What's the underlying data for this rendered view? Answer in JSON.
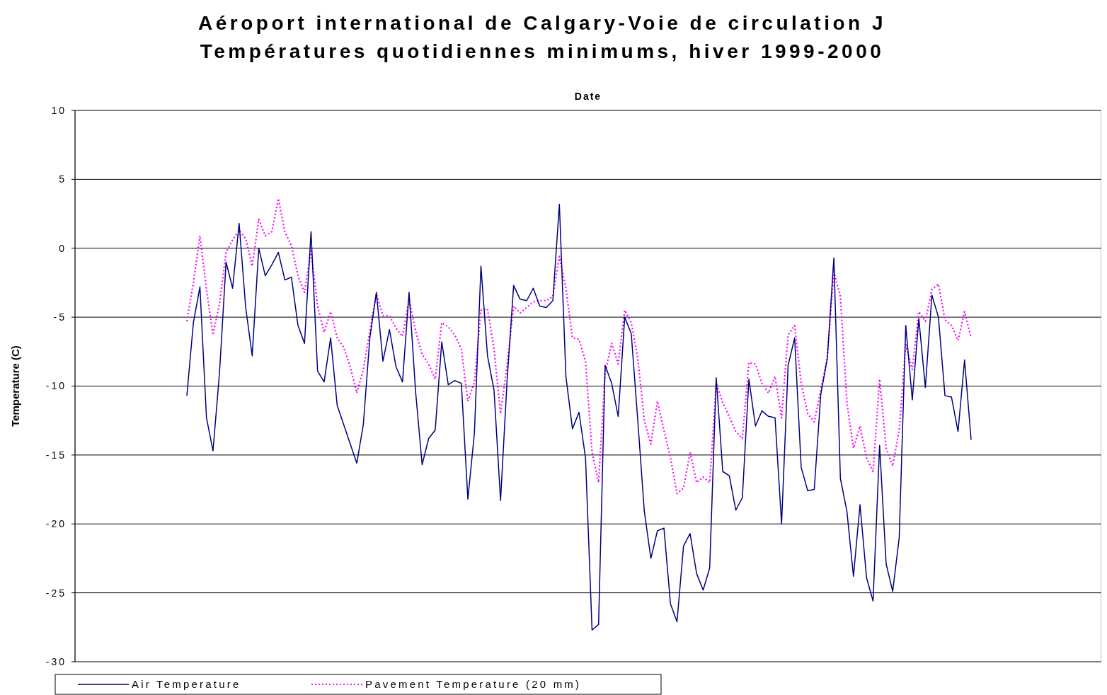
{
  "chart_data": {
    "type": "line",
    "title": "Aéroport international de Calgary-Voie de circulation J",
    "subtitle": "Températures quotidiennes minimums, hiver 1999-2000",
    "xlabel": "Date",
    "ylabel": "Temperature (C)",
    "categories": [
      null,
      null,
      null,
      null,
      null,
      null,
      null,
      null,
      null,
      null,
      null,
      null,
      null,
      null,
      null,
      null,
      null,
      null,
      null,
      null,
      null,
      null,
      null,
      null,
      null,
      null,
      null,
      null,
      null,
      null,
      null,
      null,
      null,
      null,
      null,
      null,
      null,
      null,
      null,
      null,
      null,
      null,
      null,
      null,
      null,
      null,
      null,
      null,
      null,
      null,
      null,
      null,
      null,
      null,
      null,
      null,
      null,
      null,
      null,
      null,
      null,
      null,
      null,
      null,
      null,
      null,
      null,
      null,
      null,
      null,
      null,
      null,
      null,
      null,
      null,
      null,
      null,
      null,
      null,
      null,
      null,
      null,
      null,
      null,
      null,
      null,
      null,
      null,
      null,
      null,
      null,
      null,
      null,
      null,
      null,
      null,
      null,
      null,
      null,
      null,
      null,
      null,
      null,
      null,
      null,
      null,
      null,
      null,
      null,
      null,
      null,
      null,
      null,
      null,
      null,
      null,
      null,
      null,
      null,
      null,
      null
    ],
    "series": [
      {
        "name": "Air Temperature",
        "color": "#000080",
        "line_style": "solid",
        "values": [
          -10.7,
          -5.4,
          -2.8,
          -12.3,
          -14.7,
          -9,
          -1,
          -2.9,
          1.8,
          -4.3,
          -7.8,
          0,
          -2,
          -1.2,
          -0.3,
          -2.3,
          -2.1,
          -5.6,
          -6.9,
          1.2,
          -8.9,
          -9.7,
          -6.5,
          -11.4,
          -12.8,
          -14.2,
          -15.6,
          -12.8,
          -6.5,
          -3.2,
          -8.2,
          -5.9,
          -8.6,
          -9.7,
          -3.2,
          -10.4,
          -15.7,
          -13.8,
          -13.2,
          -6.8,
          -9.9,
          -9.6,
          -9.8,
          -18.2,
          -13.4,
          -1.3,
          -7.8,
          -10.3,
          -18.3,
          -9.6,
          -2.7,
          -3.7,
          -3.8,
          -2.9,
          -4.2,
          -4.3,
          -3.8,
          3.2,
          -9.3,
          -13.1,
          -11.9,
          -15.2,
          -27.7,
          -27.3,
          -8.5,
          -9.8,
          -12.2,
          -5,
          -6.2,
          -12.5,
          -19.1,
          -22.5,
          -20.5,
          -20.3,
          -25.8,
          -27.1,
          -21.6,
          -20.7,
          -23.6,
          -24.8,
          -23.2,
          -9.4,
          -16.2,
          -16.5,
          -19,
          -18.1,
          -9.5,
          -12.9,
          -11.8,
          -12.2,
          -12.3,
          -20,
          -8.5,
          -6.5,
          -15.9,
          -17.6,
          -17.5,
          -10.6,
          -8,
          -0.7,
          -16.7,
          -19.1,
          -23.8,
          -18.6,
          -23.9,
          -25.6,
          -14.3,
          -22.9,
          -24.9,
          -21,
          -5.6,
          -11,
          -5.1,
          -10.1,
          -3.4,
          -5,
          -10.7,
          -10.8,
          -13.3,
          -8.1,
          -13.9
        ]
      },
      {
        "name": "Pavement Temperature (20 mm)",
        "color": "#ff00ff",
        "line_style": "dotted",
        "values": [
          -5.3,
          -2.5,
          0.9,
          -3,
          -6.3,
          -4,
          -0.3,
          0.6,
          1.3,
          0.7,
          -1.3,
          2.1,
          0.9,
          1.2,
          3.6,
          1.2,
          0.2,
          -2,
          -3.2,
          -0.2,
          -4.2,
          -6.1,
          -4.6,
          -6.5,
          -7.2,
          -8.6,
          -10.5,
          -8.8,
          -6,
          -3.3,
          -4.9,
          -4.9,
          -5.8,
          -6.4,
          -3.7,
          -6,
          -7.7,
          -8.4,
          -9.5,
          -5.4,
          -5.7,
          -6.3,
          -7.3,
          -11.1,
          -9.7,
          -4.5,
          -4.4,
          -7.3,
          -12,
          -8.5,
          -4.2,
          -4.7,
          -4.3,
          -3.9,
          -3.8,
          -3.8,
          -3.5,
          -0.6,
          -2.9,
          -6.5,
          -6.6,
          -8.2,
          -14.8,
          -17,
          -9,
          -6.9,
          -8.4,
          -4.5,
          -5.4,
          -8,
          -12.5,
          -14.2,
          -11.1,
          -13.2,
          -15.2,
          -17.8,
          -17.4,
          -14.8,
          -17,
          -16.6,
          -17,
          -9.8,
          -11.2,
          -12.2,
          -13.3,
          -13.8,
          -8.3,
          -8.4,
          -9.8,
          -10.5,
          -9.3,
          -12.3,
          -6.3,
          -5.6,
          -9.8,
          -12,
          -12.6,
          -10.3,
          -7.9,
          -1.7,
          -3.5,
          -11.2,
          -14.5,
          -12.9,
          -15.2,
          -16.2,
          -9.5,
          -14.5,
          -15.8,
          -13.2,
          -7,
          -8.8,
          -4.6,
          -5.3,
          -3,
          -2.6,
          -5.2,
          -5.6,
          -6.7,
          -4.6,
          -6.5
        ]
      }
    ],
    "ylim": [
      -30,
      10
    ],
    "yticks": [
      10,
      5,
      0,
      -5,
      -10,
      -15,
      -20,
      -25,
      -30
    ],
    "grid": "y",
    "legend": "bottom",
    "tick_labels": "y"
  }
}
